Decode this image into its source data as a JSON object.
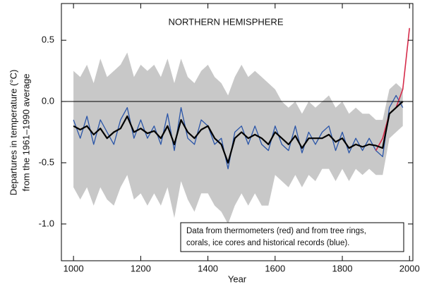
{
  "chart_data": {
    "type": "line",
    "title": "NORTHERN HEMISPHERE",
    "ylabel": [
      "Departures in temperature (°C)",
      "from the 1961–1990 average"
    ],
    "xlabel": "Year",
    "annotation": [
      "Data from thermometers (red) and from tree rings,",
      "corals, ice cores and historical records (blue)."
    ],
    "xlim": [
      964,
      2010
    ],
    "ylim": [
      -1.3,
      0.8
    ],
    "xticks": [
      1000,
      1200,
      1400,
      1600,
      1800,
      2000
    ],
    "yticks": [
      0.5,
      {
        "value": 0,
        "label": "0.0"
      },
      -0.5,
      {
        "value": -1,
        "label": "-1.0"
      }
    ],
    "zero_line": true,
    "x": [
      1000,
      1020,
      1040,
      1060,
      1080,
      1100,
      1120,
      1140,
      1160,
      1180,
      1200,
      1220,
      1240,
      1260,
      1280,
      1300,
      1320,
      1340,
      1360,
      1380,
      1400,
      1420,
      1440,
      1460,
      1480,
      1500,
      1520,
      1540,
      1560,
      1580,
      1600,
      1620,
      1640,
      1660,
      1680,
      1700,
      1720,
      1740,
      1760,
      1780,
      1800,
      1820,
      1840,
      1860,
      1880,
      1900,
      1920,
      1940,
      1960,
      1980,
      2000
    ],
    "band": {
      "color": "#c8c8c8",
      "upper": [
        0.25,
        0.2,
        0.3,
        0.15,
        0.35,
        0.2,
        0.25,
        0.3,
        0.4,
        0.2,
        0.3,
        0.25,
        0.3,
        0.2,
        0.35,
        0.15,
        0.35,
        0.2,
        0.15,
        0.25,
        0.3,
        0.2,
        0.15,
        0.05,
        0.2,
        0.3,
        0.2,
        0.25,
        0.2,
        0.15,
        0.1,
        0.0,
        -0.05,
        0.0,
        -0.1,
        0.0,
        -0.05,
        0.0,
        0.05,
        -0.05,
        0.0,
        -0.1,
        -0.05,
        -0.1,
        -0.1,
        -0.15,
        -0.15,
        0.1,
        0.15,
        0.1,
        null
      ],
      "lower": [
        -0.7,
        -0.8,
        -0.7,
        -0.85,
        -0.7,
        -0.8,
        -0.85,
        -0.7,
        -0.6,
        -0.8,
        -0.75,
        -0.85,
        -0.75,
        -0.85,
        -0.7,
        -0.95,
        -0.65,
        -0.8,
        -0.9,
        -0.75,
        -0.75,
        -0.85,
        -0.9,
        -1.0,
        -0.85,
        -0.75,
        -0.85,
        -0.75,
        -0.85,
        -0.85,
        -0.6,
        -0.65,
        -0.7,
        -0.6,
        -0.7,
        -0.6,
        -0.65,
        -0.55,
        -0.55,
        -0.65,
        -0.55,
        -0.65,
        -0.55,
        -0.6,
        -0.55,
        -0.6,
        -0.6,
        -0.3,
        -0.25,
        -0.2,
        null
      ]
    },
    "series": [
      {
        "color": "#2a55a8",
        "width": 1.3,
        "values": [
          -0.15,
          -0.3,
          -0.12,
          -0.35,
          -0.15,
          -0.25,
          -0.35,
          -0.15,
          -0.05,
          -0.3,
          -0.15,
          -0.3,
          -0.2,
          -0.35,
          -0.1,
          -0.4,
          -0.05,
          -0.3,
          -0.35,
          -0.15,
          -0.2,
          -0.35,
          -0.3,
          -0.55,
          -0.25,
          -0.2,
          -0.35,
          -0.2,
          -0.35,
          -0.4,
          -0.2,
          -0.35,
          -0.4,
          -0.2,
          -0.42,
          -0.25,
          -0.35,
          -0.25,
          -0.2,
          -0.4,
          -0.25,
          -0.42,
          -0.3,
          -0.4,
          -0.3,
          -0.4,
          -0.45,
          -0.05,
          0.05,
          -0.05,
          null
        ]
      },
      {
        "color": "#d62b4a",
        "width": 1.6,
        "values": [
          null,
          null,
          null,
          null,
          null,
          null,
          null,
          null,
          null,
          null,
          null,
          null,
          null,
          null,
          null,
          null,
          null,
          null,
          null,
          null,
          null,
          null,
          null,
          null,
          null,
          null,
          null,
          null,
          null,
          null,
          null,
          null,
          null,
          null,
          null,
          null,
          null,
          null,
          null,
          null,
          null,
          null,
          null,
          null,
          null,
          -0.4,
          -0.3,
          -0.1,
          -0.05,
          0.1,
          0.6
        ]
      },
      {
        "color": "#000000",
        "width": 2.2,
        "values": [
          -0.2,
          -0.23,
          -0.2,
          -0.27,
          -0.22,
          -0.3,
          -0.25,
          -0.22,
          -0.12,
          -0.25,
          -0.22,
          -0.26,
          -0.24,
          -0.3,
          -0.2,
          -0.35,
          -0.15,
          -0.25,
          -0.3,
          -0.23,
          -0.2,
          -0.3,
          -0.35,
          -0.5,
          -0.3,
          -0.25,
          -0.3,
          -0.27,
          -0.3,
          -0.35,
          -0.25,
          -0.3,
          -0.35,
          -0.28,
          -0.38,
          -0.3,
          -0.3,
          -0.3,
          -0.27,
          -0.33,
          -0.3,
          -0.38,
          -0.35,
          -0.37,
          -0.35,
          -0.36,
          -0.38,
          -0.1,
          -0.05,
          0.0,
          null
        ]
      }
    ]
  }
}
